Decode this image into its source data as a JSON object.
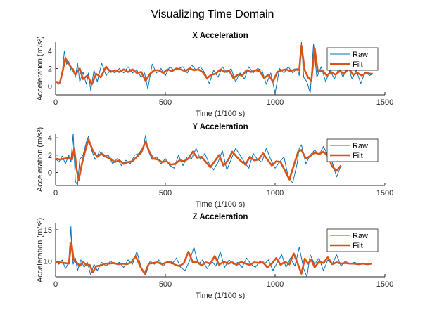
{
  "figure_title": "Visualizing Time Domain",
  "colors": {
    "raw": "#0072BD",
    "filt": "#D95319",
    "axis": "#262626"
  },
  "chart_data": [
    {
      "type": "line",
      "title": "X Acceleration",
      "xlabel": "Time (1/100 s)",
      "ylabel": "Acceleration (m/s²)",
      "xlim": [
        0,
        1500
      ],
      "ylim": [
        -1,
        5
      ],
      "xticks": [
        0,
        500,
        1000,
        1500
      ],
      "yticks": [
        0,
        2,
        4
      ],
      "legend": {
        "position": "top-right",
        "entries": [
          "Raw",
          "Filt"
        ]
      },
      "series": [
        {
          "name": "Raw",
          "x": [
            0,
            15,
            30,
            40,
            50,
            60,
            70,
            80,
            90,
            100,
            110,
            125,
            140,
            150,
            160,
            175,
            190,
            210,
            230,
            250,
            270,
            290,
            310,
            330,
            350,
            370,
            390,
            405,
            420,
            440,
            460,
            480,
            500,
            520,
            540,
            560,
            580,
            600,
            620,
            640,
            660,
            680,
            700,
            720,
            740,
            760,
            780,
            800,
            820,
            840,
            860,
            880,
            900,
            920,
            940,
            960,
            980,
            1000,
            1020,
            1040,
            1060,
            1080,
            1100,
            1110,
            1120,
            1130,
            1145,
            1160,
            1175,
            1190,
            1210,
            1230,
            1250,
            1270,
            1290,
            1310,
            1330,
            1350,
            1370,
            1390,
            1410,
            1430,
            1445
          ],
          "y": [
            0.5,
            0.2,
            1.5,
            4.0,
            2.5,
            2.8,
            1.8,
            2.0,
            1.0,
            2.6,
            0.5,
            1.6,
            0.2,
            1.5,
            -0.5,
            1.8,
            0.5,
            2.6,
            1.2,
            1.8,
            1.5,
            2.0,
            1.5,
            2.2,
            1.5,
            1.8,
            1.0,
            1.5,
            -0.3,
            2.5,
            1.5,
            2.0,
            1.2,
            2.2,
            1.8,
            2.0,
            2.2,
            1.5,
            2.4,
            1.8,
            2.2,
            1.5,
            0.3,
            1.8,
            1.0,
            2.2,
            1.5,
            2.0,
            0.5,
            1.5,
            0.8,
            2.2,
            1.5,
            2.0,
            1.8,
            0.2,
            1.5,
            -0.8,
            2.0,
            1.5,
            2.2,
            1.5,
            2.0,
            1.2,
            5.0,
            1.0,
            0.5,
            -0.8,
            4.8,
            1.0,
            2.2,
            0.5,
            1.8,
            0.8,
            2.0,
            1.0,
            2.6,
            0.8,
            1.8,
            0.3,
            1.6,
            1.2,
            1.4
          ]
        },
        {
          "name": "Filt",
          "x": [
            0,
            20,
            35,
            45,
            60,
            75,
            90,
            110,
            125,
            145,
            165,
            185,
            205,
            230,
            250,
            270,
            290,
            310,
            330,
            350,
            370,
            390,
            410,
            430,
            450,
            470,
            490,
            510,
            530,
            550,
            570,
            590,
            610,
            630,
            650,
            670,
            690,
            710,
            730,
            750,
            770,
            790,
            810,
            830,
            850,
            870,
            890,
            910,
            930,
            950,
            970,
            990,
            1010,
            1030,
            1050,
            1070,
            1090,
            1110,
            1120,
            1135,
            1150,
            1165,
            1180,
            1195,
            1215,
            1235,
            1255,
            1275,
            1295,
            1315,
            1335,
            1355,
            1375,
            1395,
            1415,
            1435,
            1445
          ],
          "y": [
            0.5,
            0.4,
            2.0,
            3.2,
            2.5,
            2.0,
            1.3,
            2.0,
            0.8,
            1.2,
            0.2,
            1.4,
            1.0,
            2.2,
            1.6,
            1.8,
            1.6,
            1.9,
            1.6,
            1.9,
            1.5,
            1.6,
            0.6,
            1.4,
            1.8,
            1.8,
            1.5,
            1.9,
            1.7,
            2.0,
            1.9,
            1.7,
            2.0,
            1.8,
            1.9,
            1.6,
            0.9,
            1.3,
            1.4,
            1.9,
            1.6,
            1.8,
            0.9,
            1.3,
            1.2,
            1.8,
            1.6,
            1.8,
            1.7,
            0.9,
            1.3,
            0.5,
            1.6,
            1.8,
            1.9,
            1.7,
            1.9,
            1.8,
            4.6,
            1.8,
            1.0,
            0.6,
            4.3,
            1.6,
            1.8,
            1.2,
            1.6,
            1.3,
            1.7,
            1.4,
            2.0,
            1.3,
            1.5,
            1.2,
            1.5,
            1.4,
            1.4
          ]
        }
      ]
    },
    {
      "type": "line",
      "title": "Y Acceleration",
      "xlabel": "Time (1/100 s)",
      "ylabel": "Acceleration (m/s²)",
      "xlim": [
        0,
        1500
      ],
      "ylim": [
        -1.5,
        4.5
      ],
      "xticks": [
        0,
        500,
        1000,
        1500
      ],
      "yticks": [
        0,
        2,
        4
      ],
      "legend": {
        "position": "top-right",
        "entries": [
          "Raw",
          "Filt"
        ]
      },
      "series": [
        {
          "name": "Raw",
          "x": [
            0,
            15,
            30,
            45,
            60,
            70,
            80,
            90,
            100,
            110,
            125,
            140,
            150,
            165,
            180,
            200,
            220,
            240,
            260,
            280,
            300,
            320,
            340,
            360,
            380,
            400,
            410,
            420,
            440,
            460,
            480,
            500,
            520,
            540,
            560,
            580,
            600,
            620,
            640,
            660,
            680,
            700,
            720,
            740,
            760,
            780,
            800,
            820,
            840,
            860,
            880,
            900,
            920,
            940,
            960,
            980,
            1000,
            1020,
            1040,
            1060,
            1080,
            1100,
            1110,
            1120,
            1140,
            1160,
            1180,
            1200,
            1220,
            1240,
            1260,
            1280,
            1300
          ],
          "y": [
            1.6,
            1.2,
            1.9,
            1.0,
            2.0,
            1.2,
            4.5,
            -1.0,
            -1.5,
            1.5,
            2.0,
            3.5,
            4.2,
            2.5,
            1.5,
            2.4,
            1.8,
            2.0,
            1.0,
            1.6,
            0.8,
            1.4,
            1.0,
            2.0,
            2.2,
            3.0,
            4.3,
            2.6,
            1.5,
            1.8,
            1.0,
            1.6,
            0.8,
            0.5,
            2.0,
            0.8,
            1.8,
            1.6,
            2.8,
            1.5,
            2.2,
            1.0,
            0.3,
            1.2,
            2.5,
            0.3,
            1.5,
            2.8,
            2.0,
            1.2,
            0.5,
            2.2,
            1.5,
            1.2,
            2.8,
            1.5,
            0.5,
            1.2,
            1.8,
            -0.5,
            -1.2,
            1.0,
            2.8,
            3.2,
            1.0,
            2.0,
            2.6,
            2.0,
            3.0,
            2.0,
            1.2,
            -0.5,
            0.8
          ]
        },
        {
          "name": "Filt",
          "x": [
            0,
            20,
            40,
            60,
            75,
            85,
            95,
            105,
            120,
            135,
            150,
            170,
            190,
            210,
            230,
            250,
            270,
            290,
            310,
            330,
            350,
            370,
            390,
            410,
            425,
            445,
            465,
            485,
            505,
            525,
            545,
            565,
            585,
            605,
            625,
            645,
            665,
            685,
            705,
            725,
            745,
            765,
            785,
            805,
            825,
            845,
            865,
            885,
            905,
            925,
            945,
            965,
            985,
            1005,
            1025,
            1045,
            1065,
            1085,
            1105,
            1120,
            1140,
            1160,
            1180,
            1200,
            1220,
            1240,
            1260,
            1280,
            1300
          ],
          "y": [
            1.6,
            1.5,
            1.6,
            1.7,
            1.5,
            2.8,
            0.5,
            -0.9,
            1.0,
            2.5,
            3.8,
            2.5,
            1.8,
            2.2,
            1.8,
            1.6,
            1.2,
            1.4,
            1.0,
            1.2,
            1.3,
            1.8,
            2.3,
            3.6,
            2.5,
            1.6,
            1.5,
            1.2,
            1.3,
            0.9,
            1.0,
            1.4,
            1.3,
            1.6,
            2.4,
            1.7,
            1.8,
            1.2,
            0.6,
            1.3,
            2.0,
            0.8,
            1.4,
            2.4,
            1.8,
            1.3,
            0.9,
            1.8,
            1.4,
            1.5,
            2.2,
            1.5,
            0.8,
            1.3,
            1.2,
            0.2,
            -0.8,
            0.8,
            2.4,
            2.6,
            1.6,
            1.9,
            2.3,
            2.1,
            2.4,
            1.9,
            0.7,
            0.2,
            0.8
          ]
        }
      ]
    },
    {
      "type": "line",
      "title": "Z Acceleration",
      "xlabel": "Time (1/100 s)",
      "ylabel": "Acceleration (m/s²)",
      "xlim": [
        0,
        1500
      ],
      "ylim": [
        7.5,
        16
      ],
      "xticks": [
        0,
        500,
        1000,
        1500
      ],
      "yticks": [
        10,
        15
      ],
      "legend": {
        "position": "top-right",
        "entries": [
          "Raw",
          "Filt"
        ]
      },
      "series": [
        {
          "name": "Raw",
          "x": [
            0,
            15,
            30,
            45,
            60,
            70,
            75,
            80,
            90,
            100,
            115,
            130,
            145,
            160,
            175,
            190,
            210,
            230,
            250,
            270,
            290,
            310,
            330,
            350,
            370,
            390,
            410,
            430,
            450,
            470,
            490,
            510,
            530,
            550,
            570,
            590,
            610,
            630,
            650,
            670,
            690,
            710,
            730,
            750,
            770,
            790,
            810,
            830,
            850,
            870,
            890,
            910,
            930,
            950,
            970,
            990,
            1010,
            1030,
            1050,
            1070,
            1090,
            1110,
            1130,
            1145,
            1160,
            1180,
            1200,
            1220,
            1240,
            1260,
            1280,
            1300,
            1320,
            1340,
            1360,
            1380,
            1400,
            1420,
            1440
          ],
          "y": [
            10.0,
            9.5,
            10.2,
            8.8,
            9.8,
            15.5,
            11.0,
            9.5,
            10.5,
            8.5,
            10.2,
            9.0,
            9.8,
            7.8,
            9.5,
            8.5,
            9.8,
            9.2,
            10.0,
            9.5,
            9.8,
            9.0,
            10.2,
            9.5,
            11.5,
            9.0,
            7.8,
            10.0,
            9.5,
            10.2,
            9.2,
            10.0,
            9.5,
            10.5,
            9.0,
            8.5,
            10.0,
            12.2,
            9.5,
            10.2,
            8.8,
            10.0,
            9.2,
            11.5,
            9.0,
            10.2,
            9.5,
            9.8,
            9.0,
            10.5,
            9.5,
            9.0,
            10.0,
            9.5,
            10.2,
            8.5,
            9.8,
            11.0,
            9.0,
            10.5,
            9.2,
            12.2,
            8.8,
            7.5,
            11.0,
            9.5,
            10.5,
            8.5,
            10.2,
            9.5,
            11.0,
            9.2,
            10.0,
            9.5,
            9.8,
            9.6,
            9.7,
            9.5,
            9.6
          ]
        },
        {
          "name": "Filt",
          "x": [
            0,
            20,
            40,
            60,
            72,
            82,
            95,
            110,
            125,
            140,
            155,
            170,
            185,
            205,
            225,
            245,
            265,
            285,
            305,
            325,
            345,
            365,
            385,
            405,
            425,
            445,
            465,
            485,
            505,
            525,
            545,
            565,
            585,
            605,
            625,
            645,
            665,
            685,
            705,
            725,
            745,
            765,
            785,
            805,
            825,
            845,
            865,
            885,
            905,
            925,
            945,
            965,
            985,
            1005,
            1025,
            1045,
            1065,
            1085,
            1105,
            1120,
            1135,
            1150,
            1165,
            1180,
            1200,
            1220,
            1240,
            1260,
            1280,
            1300,
            1320,
            1340,
            1360,
            1380,
            1400,
            1420,
            1440
          ],
          "y": [
            9.9,
            9.8,
            9.7,
            9.6,
            13.0,
            10.2,
            9.8,
            9.2,
            9.9,
            9.3,
            9.4,
            8.2,
            9.2,
            9.3,
            9.6,
            9.6,
            9.7,
            9.5,
            9.6,
            9.5,
            9.8,
            10.8,
            9.2,
            8.0,
            9.6,
            9.7,
            9.8,
            9.5,
            9.8,
            9.9,
            9.4,
            9.2,
            9.7,
            11.5,
            9.8,
            9.9,
            9.3,
            9.8,
            9.6,
            10.8,
            9.4,
            9.9,
            9.6,
            9.8,
            9.4,
            9.9,
            9.6,
            9.4,
            9.8,
            9.7,
            9.8,
            9.0,
            9.6,
            10.5,
            9.4,
            9.9,
            9.5,
            11.2,
            9.4,
            8.0,
            10.4,
            9.6,
            10.2,
            9.0,
            9.9,
            9.7,
            10.6,
            9.5,
            9.8,
            9.6,
            9.7,
            9.6,
            9.6,
            9.5,
            9.6,
            9.5,
            9.6
          ]
        }
      ]
    }
  ]
}
